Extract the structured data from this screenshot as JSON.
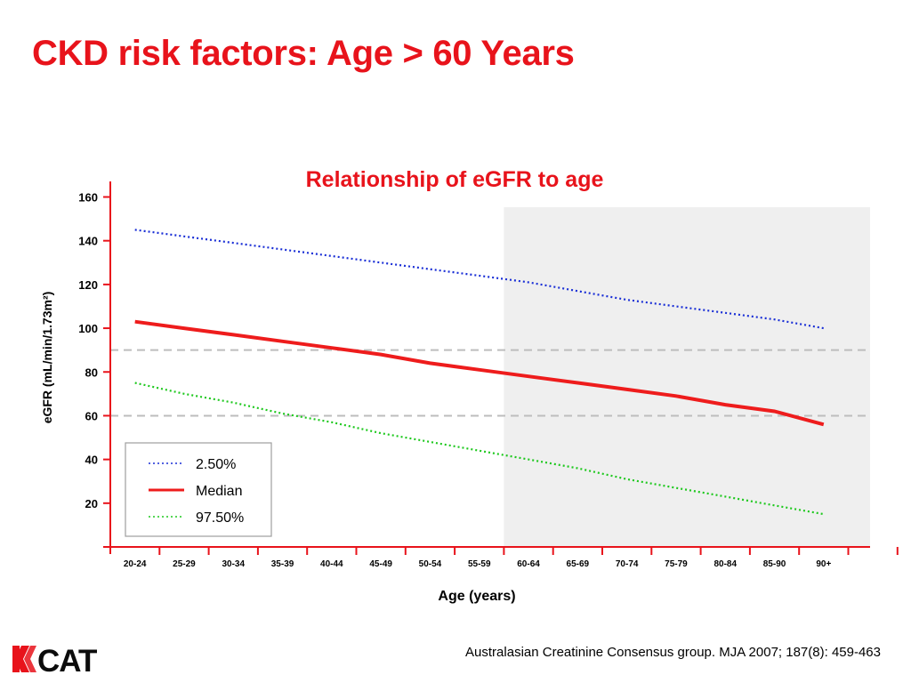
{
  "slide": {
    "title": "CKD risk factors: Age > 60 Years",
    "citation": "Australasian Creatinine Consensus group. MJA 2007; 187(8): 459-463",
    "logo_text": "KCAT"
  },
  "colors": {
    "title": "#e8131b",
    "median": "#ee1c1c",
    "p2_5": "#1a2fd6",
    "p97_5": "#1ec81e",
    "shade": "#efefef",
    "axis": "#e8131b",
    "reference": "#bdbdbd"
  },
  "chart_data": {
    "type": "line",
    "title": "Relationship of eGFR to age",
    "xlabel": "Age (years)",
    "ylabel": "eGFR (mL/min/1.73m²)",
    "categories": [
      "20-24",
      "25-29",
      "30-34",
      "35-39",
      "40-44",
      "45-49",
      "50-54",
      "55-59",
      "60-64",
      "65-69",
      "70-74",
      "75-79",
      "80-84",
      "85-90",
      "90+"
    ],
    "ylim": [
      0,
      160
    ],
    "yticks": [
      20,
      40,
      60,
      80,
      100,
      120,
      140,
      160
    ],
    "shaded_region": {
      "from": "60-64",
      "to": "90+"
    },
    "reference_lines": [
      90,
      60
    ],
    "legend_position": "bottom-left",
    "series": [
      {
        "name": "2.50%",
        "style": "dotted",
        "color": "#1a2fd6",
        "values": [
          145,
          142,
          139,
          136,
          133,
          130,
          127,
          124,
          121,
          117,
          113,
          110,
          107,
          104,
          100
        ]
      },
      {
        "name": "Median",
        "style": "solid",
        "color": "#ee1c1c",
        "values": [
          103,
          100,
          97,
          94,
          91,
          88,
          84,
          81,
          78,
          75,
          72,
          69,
          65,
          62,
          56
        ]
      },
      {
        "name": "97.50%",
        "style": "dotted",
        "color": "#1ec81e",
        "values": [
          75,
          70,
          66,
          61,
          57,
          52,
          48,
          44,
          40,
          36,
          31,
          27,
          23,
          19,
          15
        ]
      }
    ]
  }
}
